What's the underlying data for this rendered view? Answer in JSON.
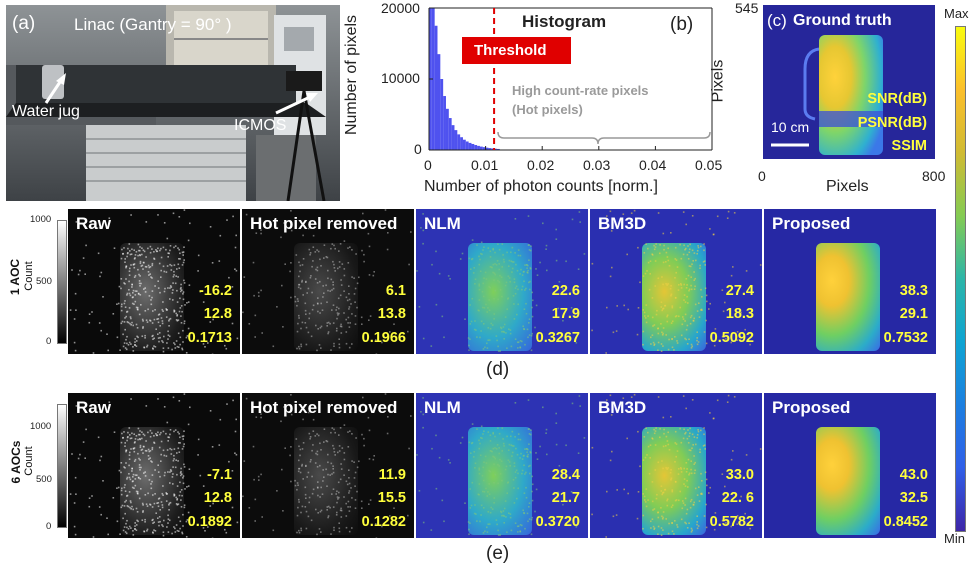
{
  "panel_a": {
    "label": "(a)",
    "title": "Linac (Gantry = 90°  )",
    "water_jug_label": "Water jug",
    "icmos_label": "ICMOS"
  },
  "panel_b": {
    "label": "(b)",
    "title": "Histogram",
    "threshold_label": "Threshold",
    "hot_pixels_line1": "High count-rate pixels",
    "hot_pixels_line2": "(Hot pixels)",
    "y_ticks": [
      "20000",
      "10000",
      "0"
    ],
    "x_ticks": [
      "0",
      "0.01",
      "0.02",
      "0.03",
      "0.04",
      "0.05"
    ],
    "y_label": "Number of pixels",
    "x_label": "Number of photon    counts [norm.]"
  },
  "panel_c": {
    "label": "(c)",
    "title": "Ground truth",
    "metric_labels": [
      "SNR(dB)",
      "PSNR(dB)",
      "SSIM"
    ],
    "scale_bar": "10 cm",
    "y_axis_label": "Pixels",
    "x_axis_label": "Pixels",
    "y_max_tick": "545",
    "x_ticks": [
      "0",
      "800"
    ],
    "colorbar_max": "Max",
    "colorbar_min": "Min"
  },
  "grayscale_colorbar": {
    "ticks": [
      "1000",
      "500",
      "0"
    ],
    "label": "Count"
  },
  "row_d": {
    "row_label": "1 AOC",
    "sublabel": "(d)",
    "tiles": [
      {
        "title": "Raw",
        "snr": "-16.2",
        "psnr": "12.8",
        "ssim": "0.1713"
      },
      {
        "title": "Hot pixel removed",
        "snr": "6.1",
        "psnr": "13.8",
        "ssim": "0.1966"
      },
      {
        "title": "NLM",
        "snr": "22.6",
        "psnr": "17.9",
        "ssim": "0.3267"
      },
      {
        "title": "BM3D",
        "snr": "27.4",
        "psnr": "18.3",
        "ssim": "0.5092"
      },
      {
        "title": "Proposed",
        "snr": "38.3",
        "psnr": "29.1",
        "ssim": "0.7532"
      }
    ]
  },
  "row_e": {
    "row_label": "6 AOCs",
    "sublabel": "(e)",
    "tiles": [
      {
        "title": "Raw",
        "snr": "-7.1",
        "psnr": "12.8",
        "ssim": "0.1892"
      },
      {
        "title": "Hot pixel removed",
        "snr": "11.9",
        "psnr": "15.5",
        "ssim": "0.1282"
      },
      {
        "title": "NLM",
        "snr": "28.4",
        "psnr": "21.7",
        "ssim": "0.3720"
      },
      {
        "title": "BM3D",
        "snr": "33.0",
        "psnr": "22. 6",
        "ssim": "0.5782"
      },
      {
        "title": "Proposed",
        "snr": "43.0",
        "psnr": "32.5",
        "ssim": "0.8452"
      }
    ]
  },
  "chart_data": {
    "type": "bar",
    "title": "Histogram",
    "xlabel": "Number of photon counts [norm.]",
    "ylabel": "Number of pixels",
    "xlim": [
      0,
      0.05
    ],
    "ylim": [
      0,
      20000
    ],
    "threshold": 0.0115,
    "bin_width": 0.0005,
    "values": [
      20000,
      20000,
      17500,
      13500,
      10000,
      7600,
      5800,
      4500,
      3500,
      2800,
      2200,
      1800,
      1450,
      1200,
      1000,
      850,
      700,
      580,
      480,
      400,
      330,
      270,
      220,
      180,
      150
    ]
  },
  "colors": {
    "threshold_red": "#e00000",
    "histogram_blue": "#4f52ef",
    "metric_yellow": "#ffff3c",
    "bg_navy": "#22208e"
  }
}
